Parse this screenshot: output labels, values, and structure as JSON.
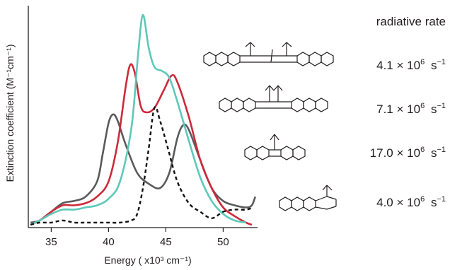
{
  "chart_data": {
    "type": "line",
    "title": "",
    "xlabel": "Energy ( x10³ cm⁻¹)",
    "ylabel": "Extinction coefficient (M⁻¹cm⁻¹)",
    "xlim": [
      33,
      53
    ],
    "ylim": [
      0,
      1
    ],
    "x_ticks": [
      35,
      40,
      45,
      50
    ],
    "y_ticks": [],
    "grid": false,
    "legend": "none",
    "series": [
      {
        "color": "#595a5c",
        "dash": "solid",
        "points": [
          [
            33.2,
            0.01
          ],
          [
            34,
            0.02
          ],
          [
            35,
            0.06
          ],
          [
            36,
            0.1
          ],
          [
            37,
            0.11
          ],
          [
            38,
            0.13
          ],
          [
            39,
            0.2
          ],
          [
            39.5,
            0.33
          ],
          [
            40,
            0.47
          ],
          [
            40.4,
            0.51
          ],
          [
            40.8,
            0.48
          ],
          [
            41.5,
            0.37
          ],
          [
            42.5,
            0.24
          ],
          [
            43.5,
            0.19
          ],
          [
            44.5,
            0.17
          ],
          [
            45.3,
            0.24
          ],
          [
            46,
            0.4
          ],
          [
            46.5,
            0.46
          ],
          [
            47,
            0.44
          ],
          [
            48,
            0.3
          ],
          [
            49,
            0.17
          ],
          [
            50,
            0.11
          ],
          [
            51,
            0.09
          ],
          [
            52,
            0.08
          ],
          [
            52.5,
            0.09
          ],
          [
            52.8,
            0.13
          ]
        ]
      },
      {
        "color": "#cc2a3a",
        "dash": "solid",
        "points": [
          [
            33.2,
            0.0
          ],
          [
            34,
            0.02
          ],
          [
            35,
            0.06
          ],
          [
            36,
            0.09
          ],
          [
            37,
            0.09
          ],
          [
            38,
            0.1
          ],
          [
            39,
            0.13
          ],
          [
            40,
            0.2
          ],
          [
            40.8,
            0.38
          ],
          [
            41.5,
            0.64
          ],
          [
            41.9,
            0.74
          ],
          [
            42.3,
            0.7
          ],
          [
            42.8,
            0.55
          ],
          [
            43.3,
            0.52
          ],
          [
            44,
            0.54
          ],
          [
            44.8,
            0.62
          ],
          [
            45.5,
            0.69
          ],
          [
            46,
            0.66
          ],
          [
            47,
            0.5
          ],
          [
            48,
            0.3
          ],
          [
            49,
            0.17
          ],
          [
            50,
            0.08
          ],
          [
            51,
            0.04
          ],
          [
            52,
            0.01
          ],
          [
            52.5,
            0.0
          ]
        ]
      },
      {
        "color": "#5ec8b8",
        "dash": "solid",
        "points": [
          [
            33.2,
            0.0
          ],
          [
            34,
            0.02
          ],
          [
            35,
            0.05
          ],
          [
            36,
            0.07
          ],
          [
            37,
            0.07
          ],
          [
            38,
            0.08
          ],
          [
            39,
            0.09
          ],
          [
            40,
            0.12
          ],
          [
            41,
            0.2
          ],
          [
            42,
            0.45
          ],
          [
            42.6,
            0.8
          ],
          [
            43,
            0.97
          ],
          [
            43.5,
            0.82
          ],
          [
            44,
            0.73
          ],
          [
            44.7,
            0.71
          ],
          [
            45.3,
            0.68
          ],
          [
            46,
            0.57
          ],
          [
            47,
            0.39
          ],
          [
            48,
            0.22
          ],
          [
            49,
            0.11
          ],
          [
            50,
            0.05
          ],
          [
            51,
            0.02
          ],
          [
            52,
            0.01
          ]
        ]
      },
      {
        "color": "#111111",
        "dash": "dashed",
        "points": [
          [
            33.2,
            0.0
          ],
          [
            34,
            0.01
          ],
          [
            35,
            0.01
          ],
          [
            36,
            0.02
          ],
          [
            37,
            0.01
          ],
          [
            38,
            0.01
          ],
          [
            39,
            0.01
          ],
          [
            40,
            0.01
          ],
          [
            41,
            0.01
          ],
          [
            42,
            0.02
          ],
          [
            42.5,
            0.05
          ],
          [
            43,
            0.17
          ],
          [
            43.5,
            0.35
          ],
          [
            44,
            0.54
          ],
          [
            44.5,
            0.48
          ],
          [
            45.2,
            0.35
          ],
          [
            46,
            0.2
          ],
          [
            47,
            0.1
          ],
          [
            48,
            0.06
          ],
          [
            49,
            0.03
          ],
          [
            50,
            0.06
          ],
          [
            51,
            0.07
          ],
          [
            52,
            0.07
          ],
          [
            52.6,
            0.08
          ]
        ]
      }
    ]
  },
  "side_table": {
    "header": "radiative rate",
    "rows": [
      {
        "mantissa": "4.1",
        "times": "×",
        "base": "10",
        "exp": "6",
        "unit": "s",
        "unit_exp": "−1"
      },
      {
        "mantissa": "7.1",
        "times": "×",
        "base": "10",
        "exp": "6",
        "unit": "s",
        "unit_exp": "−1"
      },
      {
        "mantissa": "17.0",
        "times": "×",
        "base": "10",
        "exp": "6",
        "unit": "s",
        "unit_exp": "−1"
      },
      {
        "mantissa": "4.0",
        "times": "×",
        "base": "10",
        "exp": "6",
        "unit": "s",
        "unit_exp": "−1"
      }
    ]
  }
}
